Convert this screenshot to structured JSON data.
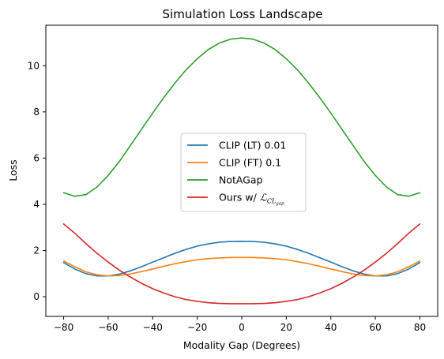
{
  "chart_data": {
    "type": "line",
    "title": "Simulation Loss Landscape",
    "xlabel": "Modality Gap (Degrees)",
    "ylabel": "Loss",
    "xlim": [
      -88,
      88
    ],
    "ylim": [
      -0.85,
      11.75
    ],
    "xticks": [
      -80,
      -60,
      -40,
      -20,
      0,
      20,
      40,
      60,
      80
    ],
    "yticks": [
      0,
      2,
      4,
      6,
      8,
      10
    ],
    "xtick_labels": [
      "−80",
      "−60",
      "−40",
      "−20",
      "0",
      "20",
      "40",
      "60",
      "80"
    ],
    "ytick_labels": [
      "0",
      "2",
      "4",
      "6",
      "8",
      "10"
    ],
    "grid": false,
    "legend_position": "center",
    "x": [
      -80,
      -75,
      -70,
      -65,
      -60,
      -55,
      -50,
      -45,
      -40,
      -35,
      -30,
      -25,
      -20,
      -15,
      -10,
      -5,
      0,
      5,
      10,
      15,
      20,
      25,
      30,
      35,
      40,
      45,
      50,
      55,
      60,
      65,
      70,
      75,
      80
    ],
    "series": [
      {
        "name": "CLIP (LT) 0.01",
        "color": "#1f77b4",
        "values": [
          1.48,
          1.2,
          1.0,
          0.9,
          0.9,
          0.98,
          1.12,
          1.3,
          1.5,
          1.69,
          1.88,
          2.05,
          2.19,
          2.29,
          2.36,
          2.39,
          2.4,
          2.39,
          2.36,
          2.29,
          2.19,
          2.05,
          1.88,
          1.69,
          1.5,
          1.3,
          1.12,
          0.98,
          0.9,
          0.9,
          1.0,
          1.2,
          1.48
        ]
      },
      {
        "name": "CLIP (FT) 0.1",
        "color": "#ff7f0e",
        "values": [
          1.55,
          1.3,
          1.08,
          0.95,
          0.9,
          0.92,
          0.99,
          1.09,
          1.2,
          1.32,
          1.43,
          1.52,
          1.6,
          1.65,
          1.68,
          1.7,
          1.7,
          1.7,
          1.68,
          1.65,
          1.6,
          1.52,
          1.43,
          1.32,
          1.2,
          1.09,
          0.99,
          0.92,
          0.9,
          0.95,
          1.08,
          1.3,
          1.55
        ]
      },
      {
        "name": "NotAGap",
        "color": "#2ca02c",
        "values": [
          4.5,
          4.35,
          4.42,
          4.75,
          5.25,
          5.85,
          6.55,
          7.25,
          7.95,
          8.62,
          9.25,
          9.82,
          10.3,
          10.7,
          10.98,
          11.15,
          11.2,
          11.15,
          10.98,
          10.7,
          10.3,
          9.82,
          9.25,
          8.62,
          7.95,
          7.25,
          6.55,
          5.85,
          5.25,
          4.75,
          4.42,
          4.35,
          4.5
        ]
      },
      {
        "name": "Ours w/ ",
        "math_label": "ℒ",
        "math_sub": "CL",
        "math_subsub": "gap",
        "color": "#d62728",
        "values": [
          3.15,
          2.75,
          2.3,
          1.88,
          1.5,
          1.15,
          0.85,
          0.58,
          0.35,
          0.16,
          0.0,
          -0.12,
          -0.2,
          -0.26,
          -0.29,
          -0.3,
          -0.3,
          -0.3,
          -0.29,
          -0.26,
          -0.2,
          -0.12,
          0.0,
          0.16,
          0.35,
          0.58,
          0.85,
          1.15,
          1.5,
          1.88,
          2.3,
          2.75,
          3.15
        ]
      }
    ]
  }
}
